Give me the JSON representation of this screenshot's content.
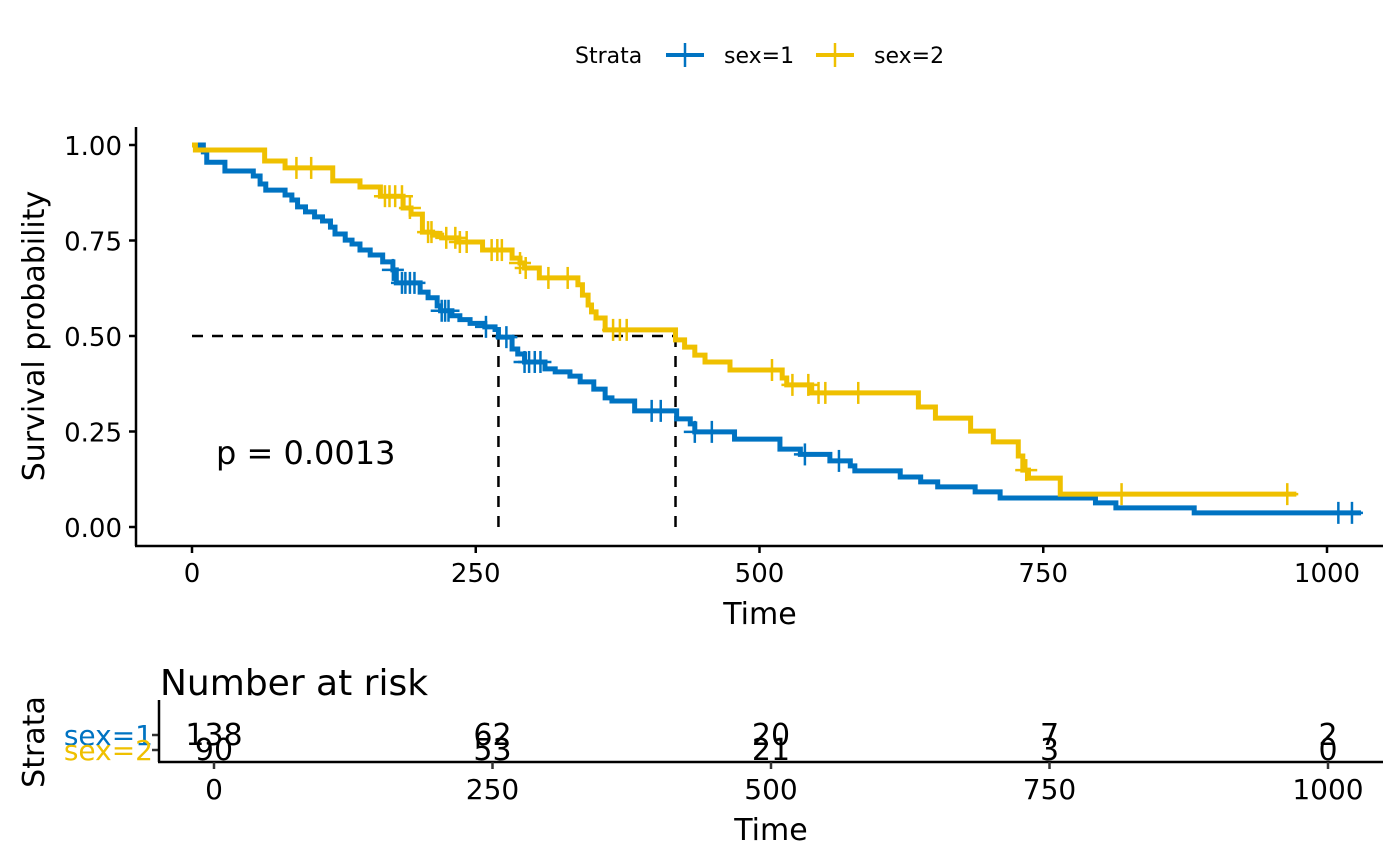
{
  "chart_data": {
    "type": "line",
    "subtype": "kaplan-meier",
    "title": "",
    "xlabel": "Time",
    "ylabel": "Survival probability",
    "xlim": [
      -30,
      1050
    ],
    "ylim": [
      0,
      1
    ],
    "x_ticks": [
      0,
      250,
      500,
      750,
      1000
    ],
    "y_ticks": [
      0.0,
      0.25,
      0.5,
      0.75,
      1.0
    ],
    "y_tick_labels": [
      "0.00",
      "0.25",
      "0.50",
      "0.75",
      "1.00"
    ],
    "grid": false,
    "legend": {
      "title": "Strata",
      "position": "top",
      "entries": [
        "sex=1",
        "sex=2"
      ]
    },
    "annotation": "p = 0.0013",
    "median_survival": [
      {
        "name": "sex=1",
        "time": 270,
        "surv": 0.5
      },
      {
        "name": "sex=2",
        "time": 426,
        "surv": 0.5
      }
    ],
    "series": [
      {
        "name": "sex=1",
        "color": "#0073C2",
        "end_time": 1030,
        "steps": [
          [
            0,
            1.0
          ],
          [
            10,
            0.982
          ],
          [
            13,
            0.955
          ],
          [
            29,
            0.932
          ],
          [
            54,
            0.919
          ],
          [
            60,
            0.898
          ],
          [
            65,
            0.882
          ],
          [
            82,
            0.869
          ],
          [
            88,
            0.856
          ],
          [
            93,
            0.838
          ],
          [
            100,
            0.825
          ],
          [
            108,
            0.812
          ],
          [
            115,
            0.801
          ],
          [
            122,
            0.785
          ],
          [
            126,
            0.767
          ],
          [
            135,
            0.751
          ],
          [
            141,
            0.741
          ],
          [
            148,
            0.725
          ],
          [
            157,
            0.712
          ],
          [
            168,
            0.694
          ],
          [
            177,
            0.673
          ],
          [
            180,
            0.639
          ],
          [
            201,
            0.615
          ],
          [
            208,
            0.6
          ],
          [
            216,
            0.579
          ],
          [
            219,
            0.566
          ],
          [
            229,
            0.553
          ],
          [
            236,
            0.543
          ],
          [
            245,
            0.533
          ],
          [
            258,
            0.524
          ],
          [
            267,
            0.517
          ],
          [
            270,
            0.497
          ],
          [
            282,
            0.466
          ],
          [
            287,
            0.453
          ],
          [
            293,
            0.432
          ],
          [
            311,
            0.414
          ],
          [
            320,
            0.406
          ],
          [
            333,
            0.395
          ],
          [
            342,
            0.38
          ],
          [
            354,
            0.361
          ],
          [
            364,
            0.338
          ],
          [
            370,
            0.33
          ],
          [
            390,
            0.304
          ],
          [
            427,
            0.283
          ],
          [
            439,
            0.27
          ],
          [
            443,
            0.249
          ],
          [
            478,
            0.23
          ],
          [
            518,
            0.204
          ],
          [
            536,
            0.19
          ],
          [
            562,
            0.173
          ],
          [
            580,
            0.16
          ],
          [
            584,
            0.147
          ],
          [
            624,
            0.131
          ],
          [
            642,
            0.118
          ],
          [
            657,
            0.105
          ],
          [
            690,
            0.092
          ],
          [
            712,
            0.076
          ],
          [
            796,
            0.063
          ],
          [
            814,
            0.05
          ],
          [
            883,
            0.037
          ]
        ],
        "censored_times": [
          177,
          185,
          188,
          192,
          196,
          220,
          223,
          226,
          259,
          277,
          293,
          297,
          302,
          307,
          405,
          413,
          443,
          458,
          540,
          570,
          1010,
          1022
        ]
      },
      {
        "name": "sex=2",
        "color": "#EFC000",
        "end_time": 973,
        "steps": [
          [
            0,
            1.0
          ],
          [
            3,
            0.987
          ],
          [
            64,
            0.958
          ],
          [
            82,
            0.94
          ],
          [
            124,
            0.906
          ],
          [
            148,
            0.89
          ],
          [
            166,
            0.866
          ],
          [
            186,
            0.835
          ],
          [
            193,
            0.819
          ],
          [
            203,
            0.772
          ],
          [
            212,
            0.764
          ],
          [
            220,
            0.757
          ],
          [
            235,
            0.746
          ],
          [
            256,
            0.725
          ],
          [
            282,
            0.704
          ],
          [
            289,
            0.691
          ],
          [
            293,
            0.678
          ],
          [
            306,
            0.652
          ],
          [
            340,
            0.634
          ],
          [
            344,
            0.607
          ],
          [
            349,
            0.581
          ],
          [
            352,
            0.563
          ],
          [
            356,
            0.547
          ],
          [
            364,
            0.516
          ],
          [
            426,
            0.49
          ],
          [
            434,
            0.471
          ],
          [
            443,
            0.45
          ],
          [
            452,
            0.432
          ],
          [
            474,
            0.411
          ],
          [
            520,
            0.39
          ],
          [
            524,
            0.372
          ],
          [
            546,
            0.351
          ],
          [
            640,
            0.314
          ],
          [
            655,
            0.285
          ],
          [
            686,
            0.251
          ],
          [
            706,
            0.223
          ],
          [
            728,
            0.186
          ],
          [
            732,
            0.149
          ],
          [
            737,
            0.128
          ],
          [
            765,
            0.086
          ]
        ],
        "censored_times": [
          92,
          105,
          170,
          174,
          179,
          185,
          192,
          208,
          211,
          224,
          232,
          236,
          242,
          264,
          269,
          273,
          289,
          294,
          314,
          331,
          371,
          377,
          383,
          511,
          529,
          543,
          552,
          558,
          587,
          735,
          819,
          965
        ]
      }
    ],
    "risk_table": {
      "title": "Number at risk",
      "ylabel": "Strata",
      "xlabel": "Time",
      "times": [
        0,
        250,
        500,
        750,
        1000
      ],
      "rows": [
        {
          "name": "sex=1",
          "color": "#0073C2",
          "counts": [
            "138",
            "62",
            "20",
            "7",
            "2"
          ]
        },
        {
          "name": "sex=2",
          "color": "#EFC000",
          "counts": [
            "90",
            "53",
            "21",
            "3",
            "0"
          ]
        }
      ]
    }
  }
}
